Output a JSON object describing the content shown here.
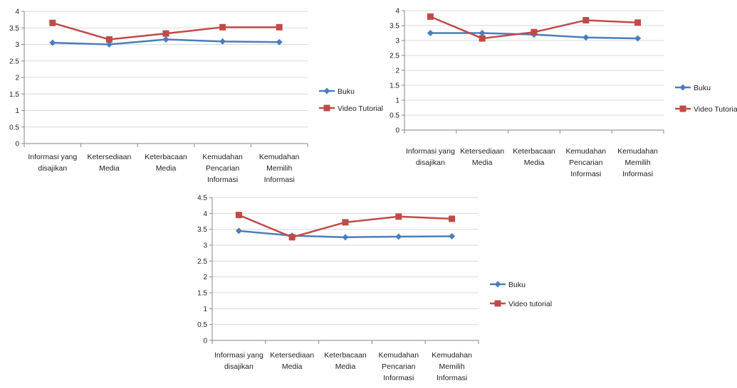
{
  "colors": {
    "buku": "#4a7ebb",
    "video": "#be4b48",
    "grid": "#d9d9d9",
    "axis": "#868686"
  },
  "chart_data": [
    {
      "type": "line",
      "categories": [
        [
          "Informasi yang",
          "disajikan"
        ],
        [
          "Ketersediaan",
          "Media"
        ],
        [
          "Keterbacaan",
          "Media"
        ],
        [
          "Kemudahan",
          "Pencarian",
          "Informasi"
        ],
        [
          "Kemudahan",
          "Memilih",
          "Informasi"
        ]
      ],
      "series": [
        {
          "name": "Buku",
          "values": [
            3.05,
            3.0,
            3.15,
            3.09,
            3.07
          ]
        },
        {
          "name": "Video Tutorial",
          "values": [
            3.65,
            3.15,
            3.33,
            3.52,
            3.52
          ]
        }
      ],
      "ylim": [
        0,
        4
      ],
      "yticks": [
        "0",
        "0.5",
        "1",
        "1.5",
        "2",
        "2.5",
        "3",
        "3.5",
        "4"
      ],
      "legend": "right",
      "grid": true
    },
    {
      "type": "line",
      "categories": [
        [
          "Informasi yang",
          "disajikan"
        ],
        [
          "Ketersediaan",
          "Media"
        ],
        [
          "Keterbacaan",
          "Media"
        ],
        [
          "Kemudahan",
          "Pencarian",
          "Informasi"
        ],
        [
          "Kemudahan",
          "Memilih",
          "Informasi"
        ]
      ],
      "series": [
        {
          "name": "Buku",
          "values": [
            3.25,
            3.25,
            3.2,
            3.1,
            3.07
          ]
        },
        {
          "name": "Video Tutorial",
          "values": [
            3.8,
            3.07,
            3.28,
            3.68,
            3.6
          ]
        }
      ],
      "ylim": [
        0,
        4
      ],
      "yticks": [
        "0",
        "0.5",
        "1",
        "1.5",
        "2",
        "2.5",
        "3",
        "3.5",
        "4"
      ],
      "legend": "right",
      "grid": true
    },
    {
      "type": "line",
      "categories": [
        [
          "Informasi yang",
          "disajikan"
        ],
        [
          "Ketersediaan",
          "Media"
        ],
        [
          "Keterbacaan",
          "Media"
        ],
        [
          "Kemudahan",
          "Pencarian",
          "Informasi"
        ],
        [
          "Kemudahan",
          "Memilih",
          "Informasi"
        ]
      ],
      "series": [
        {
          "name": "Buku",
          "values": [
            3.45,
            3.3,
            3.25,
            3.27,
            3.28
          ]
        },
        {
          "name": "Video tutorial",
          "values": [
            3.95,
            3.25,
            3.72,
            3.9,
            3.83
          ]
        }
      ],
      "ylim": [
        0,
        4.5
      ],
      "yticks": [
        "0",
        "0.5",
        "1",
        "1.5",
        "2",
        "2.5",
        "3",
        "3.5",
        "4",
        "4.5"
      ],
      "legend": "right",
      "grid": true
    }
  ]
}
